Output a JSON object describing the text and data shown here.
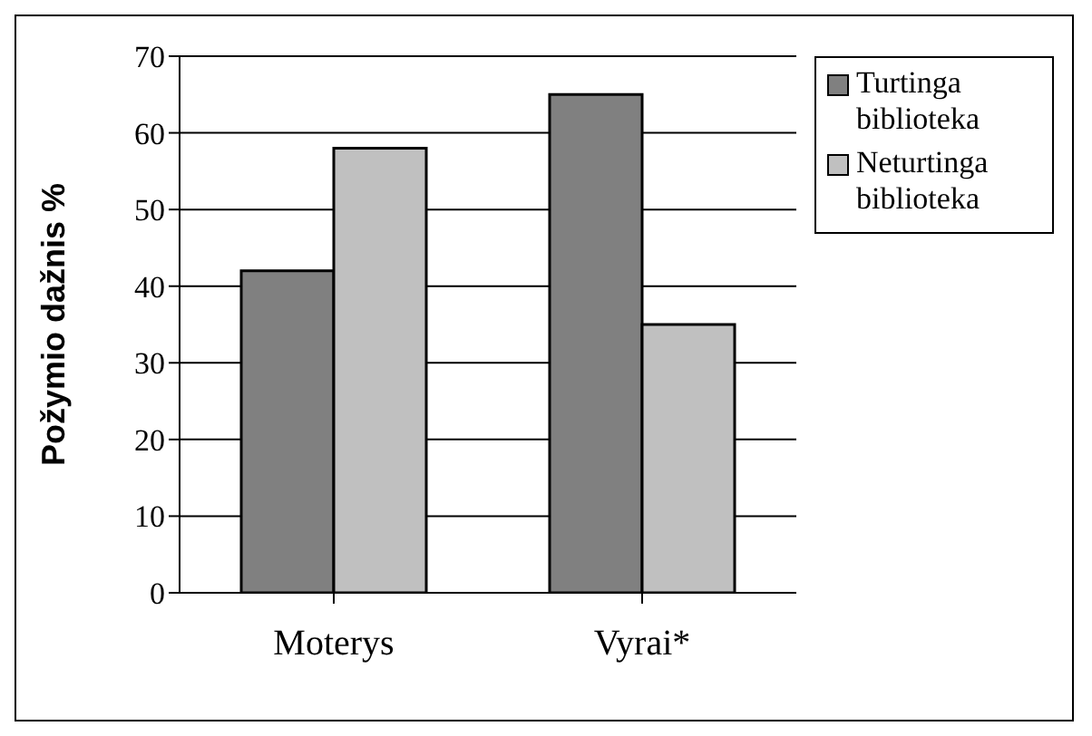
{
  "chart_data": {
    "type": "bar",
    "ylabel": "Požymio dažnis %",
    "categories": [
      "Moterys",
      "Vyrai*"
    ],
    "series": [
      {
        "name": "Turtinga biblioteka",
        "color": "#808080",
        "values": [
          42,
          65
        ]
      },
      {
        "name": "Neturtinga biblioteka",
        "color": "#c0c0c0",
        "values": [
          58,
          35
        ]
      }
    ],
    "ylim": [
      0,
      70
    ],
    "yticks": [
      0,
      10,
      20,
      30,
      40,
      50,
      60,
      70
    ],
    "grid": "y",
    "legend": "top right"
  }
}
